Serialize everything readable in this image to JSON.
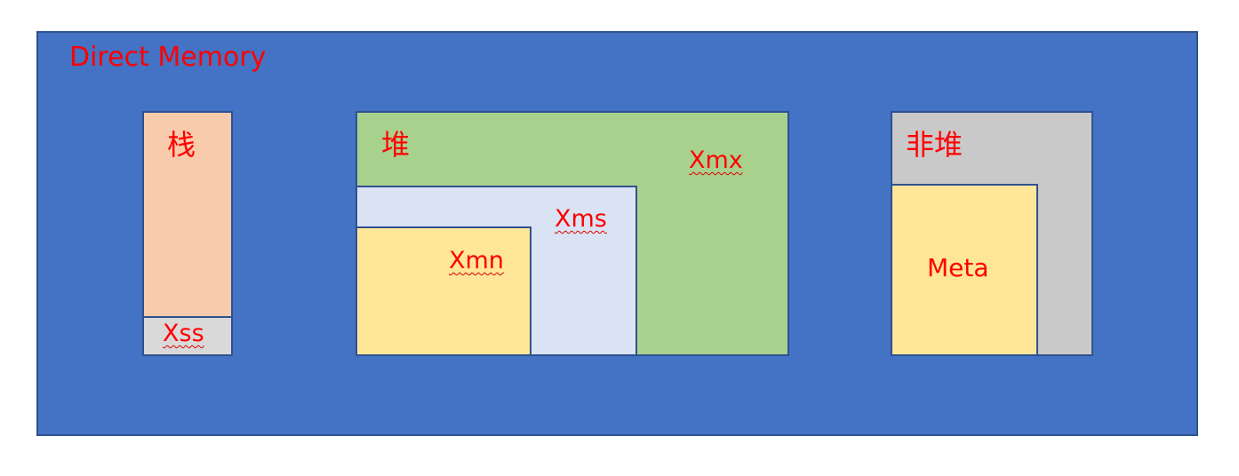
{
  "direct_memory": {
    "label": "Direct Memory",
    "color": "#4472c4"
  },
  "stack": {
    "label": "栈",
    "color": "#f8cbad",
    "xss": {
      "label": "Xss",
      "color": "#d9d9d9"
    }
  },
  "heap": {
    "label": "堆",
    "color": "#a9d18e",
    "xmx": {
      "label": "Xmx"
    },
    "xms": {
      "label": "Xms",
      "color": "#dae3f3"
    },
    "xmn": {
      "label": "Xmn",
      "color": "#ffe699"
    }
  },
  "non_heap": {
    "label": "非堆",
    "color": "#c9c9c9",
    "meta": {
      "label": "Meta",
      "color": "#ffe699"
    }
  },
  "label_color": "#ff0000",
  "border_color": "#2f528f"
}
